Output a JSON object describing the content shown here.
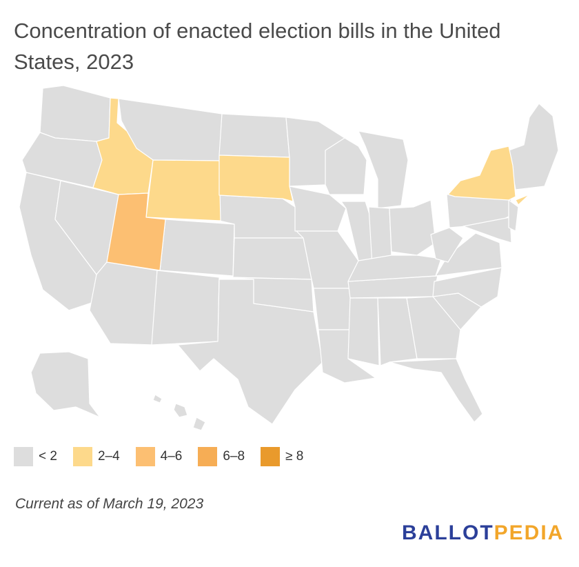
{
  "title": "Concentration of enacted election bills in the United States, 2023",
  "footnote": "Current as of March 19, 2023",
  "logo": {
    "part1": "BALLOT",
    "part2": "PEDIA"
  },
  "legend": [
    {
      "label": "< 2",
      "color": "#dddddd"
    },
    {
      "label": "2–4",
      "color": "#fdd98b"
    },
    {
      "label": "4–6",
      "color": "#fcbf72"
    },
    {
      "label": "6–8",
      "color": "#f6ad55"
    },
    {
      "label": "≥ 8",
      "color": "#e99a2c"
    }
  ],
  "colors": {
    "default": "#dddddd",
    "bin_2_4": "#fdd98b",
    "bin_4_6": "#fcbf72"
  },
  "highlighted_states": [
    {
      "state": "Idaho",
      "bin": "2–4"
    },
    {
      "state": "Wyoming",
      "bin": "2–4"
    },
    {
      "state": "South Dakota",
      "bin": "2–4"
    },
    {
      "state": "New York",
      "bin": "2–4"
    },
    {
      "state": "Utah",
      "bin": "4–6"
    }
  ]
}
